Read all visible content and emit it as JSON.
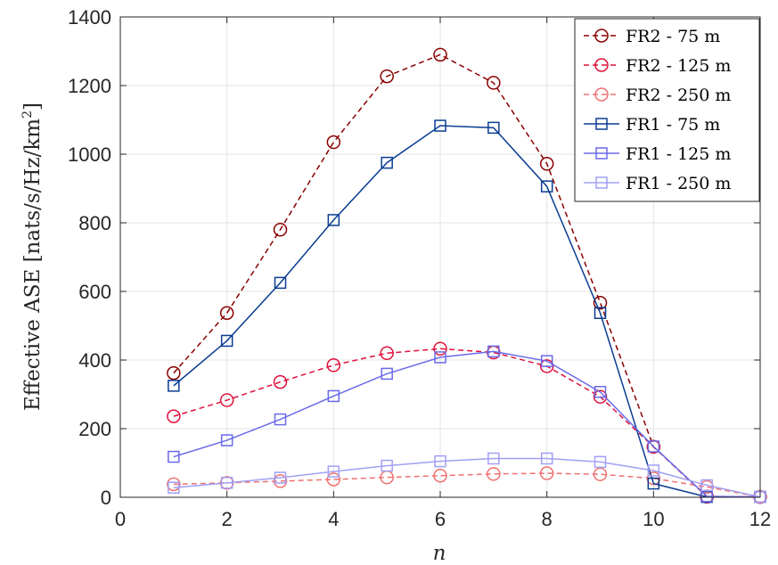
{
  "chart_data": {
    "type": "line",
    "title": "",
    "xlabel": "n",
    "ylabel": "Effective ASE [nats/s/Hz/km²]",
    "ylabel_prefix": "Effective ASE [nats/s/Hz/km",
    "ylabel_sup": "2",
    "ylabel_suffix": "]",
    "xlim": [
      0,
      12
    ],
    "ylim": [
      0,
      1400
    ],
    "xticks": [
      0,
      2,
      4,
      6,
      8,
      10,
      12
    ],
    "yticks": [
      0,
      200,
      400,
      600,
      800,
      1000,
      1200,
      1400
    ],
    "grid": true,
    "legend_position": "top-right",
    "x": [
      1,
      2,
      3,
      4,
      5,
      6,
      7,
      8,
      9,
      10,
      11,
      12
    ],
    "series": [
      {
        "name": "FR2 - 75 m",
        "marker": "circle",
        "dash": true,
        "color": "#8b0000",
        "values": [
          362,
          537,
          780,
          1035,
          1227,
          1290,
          1208,
          972,
          567,
          147,
          2,
          1
        ]
      },
      {
        "name": "FR2 - 125 m",
        "marker": "circle",
        "dash": true,
        "color": "#e0103c",
        "values": [
          236,
          283,
          336,
          385,
          420,
          433,
          422,
          382,
          293,
          147,
          2,
          1
        ]
      },
      {
        "name": "FR2 - 250 m",
        "marker": "circle",
        "dash": true,
        "color": "#f07070",
        "values": [
          38,
          42,
          47,
          52,
          58,
          63,
          68,
          70,
          67,
          55,
          30,
          1
        ]
      },
      {
        "name": "FR1 - 75 m",
        "marker": "square",
        "dash": false,
        "color": "#0b3d91",
        "values": [
          325,
          456,
          625,
          808,
          975,
          1083,
          1077,
          906,
          537,
          40,
          1,
          1
        ]
      },
      {
        "name": "FR1 - 125 m",
        "marker": "square",
        "dash": false,
        "color": "#6a6ae8",
        "values": [
          118,
          166,
          227,
          295,
          360,
          408,
          425,
          397,
          307,
          148,
          3,
          1
        ]
      },
      {
        "name": "FR1 - 250 m",
        "marker": "square",
        "dash": false,
        "color": "#a0a0f5",
        "values": [
          28,
          42,
          57,
          75,
          92,
          105,
          113,
          113,
          103,
          78,
          35,
          1
        ]
      }
    ]
  }
}
